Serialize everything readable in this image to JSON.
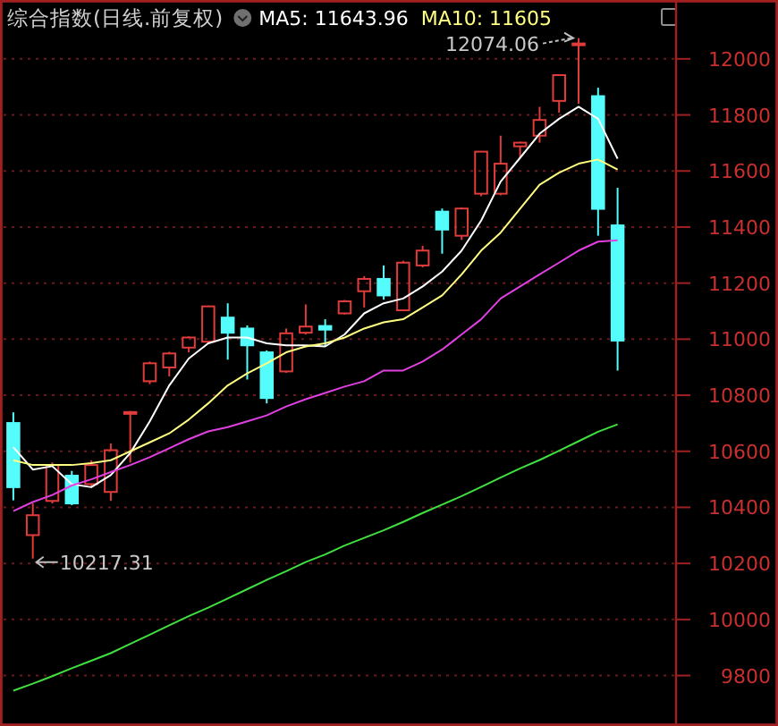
{
  "chart_data": {
    "type": "candlestick",
    "title": "综合指数(日线.前复权)",
    "categories": [
      null,
      null,
      null,
      null,
      null,
      null,
      null,
      null,
      null,
      null,
      null,
      null,
      null,
      null,
      null,
      null,
      null,
      null,
      null,
      null,
      null,
      null,
      null,
      null,
      null,
      null,
      null,
      null,
      null,
      null,
      null,
      null
    ],
    "ohlc": [
      [
        10701,
        10739,
        10425,
        10472
      ],
      [
        10301,
        10414,
        10217.31,
        10372
      ],
      [
        10423,
        10560,
        10414,
        10551
      ],
      [
        10513,
        10530,
        10408,
        10414
      ],
      [
        10483,
        10568,
        10472,
        10551
      ],
      [
        10455,
        10628,
        10423,
        10604
      ],
      [
        10735,
        10744,
        10560,
        10740
      ],
      [
        10850,
        10920,
        10840,
        10914
      ],
      [
        10899,
        10955,
        10867,
        10949
      ],
      [
        10970,
        11010,
        10953,
        11006
      ],
      [
        10991,
        11120,
        10985,
        11117
      ],
      [
        11077,
        11128,
        10927,
        11023
      ],
      [
        11038,
        11049,
        10856,
        10978
      ],
      [
        10953,
        10960,
        10771,
        10790
      ],
      [
        10885,
        11038,
        10880,
        11021
      ],
      [
        11023,
        11124,
        11017,
        11045
      ],
      [
        11047,
        11071,
        10974,
        11034
      ],
      [
        11092,
        11140,
        11088,
        11135
      ],
      [
        11171,
        11225,
        11113,
        11215
      ],
      [
        11215,
        11263,
        11141,
        11156
      ],
      [
        11103,
        11280,
        11100,
        11273
      ],
      [
        11263,
        11333,
        11256,
        11316
      ],
      [
        11455,
        11466,
        11305,
        11391
      ],
      [
        11369,
        11470,
        11354,
        11466
      ],
      [
        11519,
        11670,
        11510,
        11669
      ],
      [
        11519,
        11726,
        11513,
        11626
      ],
      [
        11688,
        11705,
        11647,
        11701
      ],
      [
        11726,
        11829,
        11701,
        11782
      ],
      [
        11850,
        11945,
        11808,
        11942
      ],
      [
        12050,
        12074.06,
        11840,
        12055
      ],
      [
        11867,
        11897,
        11369,
        11465
      ],
      [
        11406,
        11540,
        10888,
        10995
      ]
    ],
    "colors": [
      "#54fcfc",
      "#e03c3c",
      "#e03c3c",
      "#54fcfc",
      "#e03c3c",
      "#e03c3c",
      "#e03c3c",
      "#e03c3c",
      "#e03c3c",
      "#e03c3c",
      "#e03c3c",
      "#54fcfc",
      "#54fcfc",
      "#54fcfc",
      "#e03c3c",
      "#e03c3c",
      "#54fcfc",
      "#e03c3c",
      "#e03c3c",
      "#54fcfc",
      "#e03c3c",
      "#e03c3c",
      "#54fcfc",
      "#e03c3c",
      "#e03c3c",
      "#e03c3c",
      "#e03c3c",
      "#e03c3c",
      "#e03c3c",
      "#e03c3c",
      "#54fcfc",
      "#54fcfc"
    ],
    "series": [
      {
        "type": "line",
        "name": "MA5: 11643.96",
        "color": "#ffffff",
        "values": [
          10615,
          10535,
          10547,
          10483,
          10472,
          10515,
          10594,
          10707,
          10835,
          10931,
          10985,
          11006,
          11006,
          10985,
          10978,
          10978,
          10974,
          11017,
          11092,
          11128,
          11145,
          11188,
          11241,
          11316,
          11423,
          11562,
          11647,
          11733,
          11786,
          11829,
          11786,
          11644
        ]
      },
      {
        "type": "line",
        "name": "MA10: 11605",
        "color": "#ffff80",
        "values": [
          10568,
          10551,
          10551,
          10551,
          10558,
          10568,
          10600,
          10632,
          10664,
          10713,
          10771,
          10835,
          10878,
          10914,
          10953,
          10974,
          10985,
          11006,
          11038,
          11060,
          11071,
          11113,
          11156,
          11231,
          11316,
          11380,
          11466,
          11551,
          11594,
          11626,
          11641,
          11605
        ]
      },
      {
        "type": "line",
        "color": "#e040e0",
        "values": [
          10387,
          10419,
          10444,
          10478,
          10500,
          10526,
          10551,
          10579,
          10611,
          10643,
          10671,
          10686,
          10707,
          10728,
          10760,
          10786,
          10808,
          10831,
          10850,
          10888,
          10888,
          10920,
          10963,
          11017,
          11071,
          11145,
          11188,
          11231,
          11273,
          11316,
          11348,
          11353
        ]
      },
      {
        "type": "line",
        "color": "#40e040",
        "values": [
          9746,
          9771,
          9798,
          9826,
          9853,
          9880,
          9913,
          9946,
          9979,
          10012,
          10042,
          10075,
          10108,
          10141,
          10172,
          10205,
          10232,
          10264,
          10291,
          10318,
          10348,
          10380,
          10410,
          10440,
          10473,
          10506,
          10539,
          10569,
          10602,
          10636,
          10670,
          10696
        ]
      }
    ],
    "ylim": [
      9620,
      12210
    ],
    "yticks": [
      9800,
      10000,
      10200,
      10400,
      10600,
      10800,
      11000,
      11200,
      11400,
      11600,
      11800,
      12000
    ],
    "grid": "y",
    "legend": "top",
    "annotations": [
      "12074.06",
      "10217.31"
    ]
  }
}
